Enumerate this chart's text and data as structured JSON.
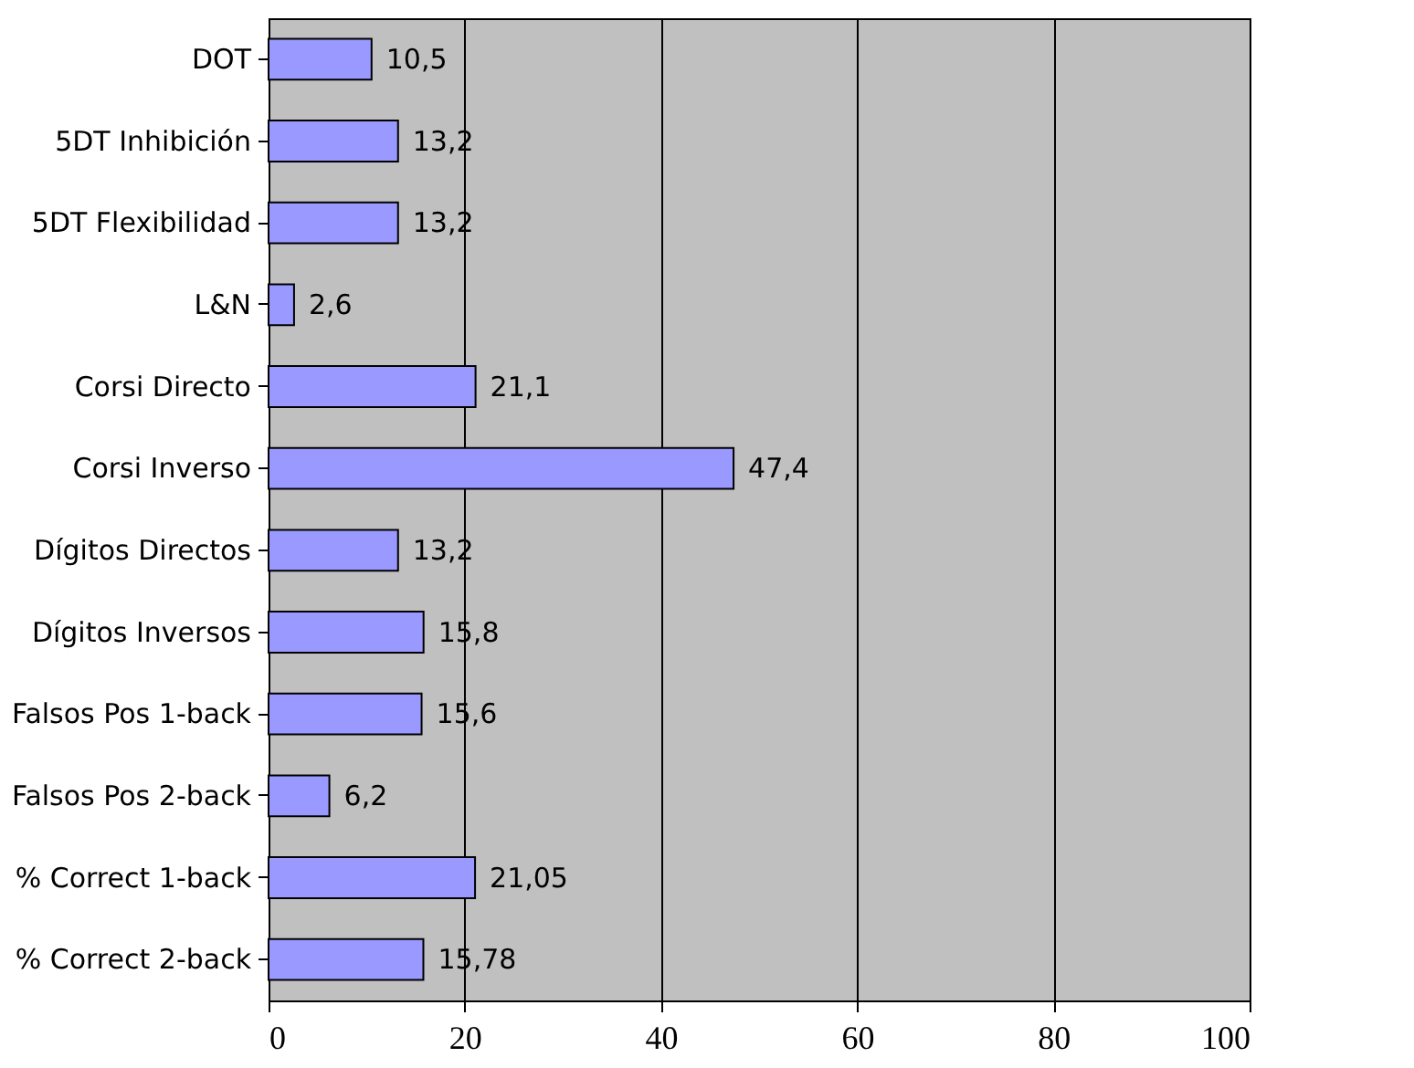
{
  "chart_data": {
    "type": "bar",
    "orientation": "horizontal",
    "categories": [
      "DOT",
      "5DT Inhibición",
      "5DT Flexibilidad",
      "L&N",
      "Corsi Directo",
      "Corsi Inverso",
      "Dígitos Directos",
      "Dígitos Inversos",
      "Falsos Pos 1-back",
      "Falsos Pos 2-back",
      "% Correct 1-back",
      "% Correct 2-back"
    ],
    "values": [
      10.5,
      13.2,
      13.2,
      2.6,
      21.1,
      47.4,
      13.2,
      15.8,
      15.6,
      6.2,
      21.05,
      15.78
    ],
    "value_labels": [
      "10,5",
      "13,2",
      "13,2",
      "2,6",
      "21,1",
      "47,4",
      "13,2",
      "15,8",
      "15,6",
      "6,2",
      "21,05",
      "15,78"
    ],
    "color": "#9999ff",
    "xlim": [
      0,
      100
    ],
    "xticks": [
      0,
      20,
      40,
      60,
      80,
      100
    ],
    "grid": "x"
  }
}
